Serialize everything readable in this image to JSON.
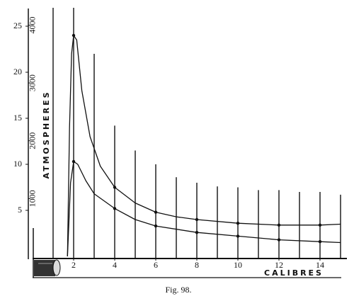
{
  "chart_data": {
    "type": "line",
    "x_label": "CALIBRES",
    "y_label": "ATMOSPHERES",
    "caption": "Fig. 98.",
    "xlim": [
      0,
      15.5
    ],
    "xticks": [
      2,
      4,
      6,
      8,
      10,
      12,
      14
    ],
    "ylim": [
      0,
      27
    ],
    "yticks": [
      5,
      10,
      15,
      20,
      25
    ],
    "y2lim": [
      0,
      4300
    ],
    "y2ticks": [
      1000,
      2000,
      3000,
      4000
    ],
    "color": "#111111",
    "stems": {
      "x": [
        1,
        2,
        3,
        4,
        5,
        6,
        7,
        8,
        9,
        10,
        11,
        12,
        13,
        14,
        15
      ],
      "values": [
        27,
        27,
        22,
        14.2,
        11.5,
        10,
        8.6,
        8,
        7.6,
        7.5,
        7.2,
        7.2,
        7,
        7,
        6.7
      ]
    },
    "series": [
      {
        "x": [
          1.7,
          1.8,
          1.9,
          2,
          2.15,
          2.4,
          2.8,
          3.3,
          4,
          5,
          6,
          7,
          8,
          10,
          12,
          14,
          15
        ],
        "values": [
          0,
          14,
          22,
          24,
          23.5,
          18,
          13,
          9.8,
          7.5,
          5.8,
          4.8,
          4.3,
          4,
          3.6,
          3.4,
          3.4,
          3.5
        ]
      },
      {
        "x": [
          1.7,
          1.85,
          2,
          2.2,
          2.6,
          3,
          4,
          5,
          6,
          8,
          10,
          12,
          14,
          15
        ],
        "values": [
          0,
          8,
          10.3,
          10,
          8.2,
          6.8,
          5.2,
          4,
          3.3,
          2.6,
          2.2,
          1.8,
          1.6,
          1.5
        ]
      }
    ]
  }
}
